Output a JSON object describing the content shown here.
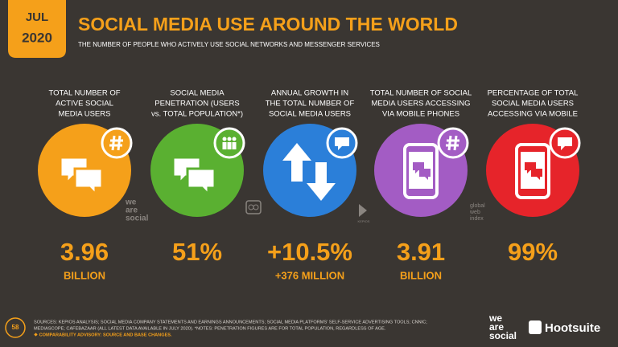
{
  "badge": {
    "month": "JUL",
    "year": "2020"
  },
  "header": {
    "title": "SOCIAL MEDIA USE AROUND THE WORLD",
    "subtitle": "THE NUMBER OF PEOPLE WHO ACTIVELY USE SOCIAL NETWORKS AND MESSENGER SERVICES"
  },
  "stats": [
    {
      "label": [
        "TOTAL NUMBER OF",
        "ACTIVE SOCIAL",
        "MEDIA USERS"
      ],
      "value": "3.96",
      "sub": "BILLION"
    },
    {
      "label": [
        "SOCIAL MEDIA",
        "PENETRATION (USERS",
        "vs. TOTAL POPULATION*)"
      ],
      "value": "51%"
    },
    {
      "label": [
        "ANNUAL GROWTH IN",
        "THE TOTAL NUMBER OF",
        "SOCIAL MEDIA USERS"
      ],
      "value": "+10.5%",
      "sub": "+376 MILLION"
    },
    {
      "label": [
        "TOTAL NUMBER OF SOCIAL",
        "MEDIA USERS ACCESSING",
        "VIA MOBILE PHONES"
      ],
      "value": "3.91",
      "sub": "BILLION"
    },
    {
      "label": [
        "PERCENTAGE OF TOTAL",
        "SOCIAL MEDIA USERS",
        "ACCESSING VIA MOBILE"
      ],
      "value": "99%"
    }
  ],
  "logos": {
    "wearesocial": [
      "we",
      "are",
      "social"
    ],
    "kepios": "KEPIOS",
    "gwi": [
      "global",
      "web",
      "index"
    ]
  },
  "footer": {
    "page": "58",
    "sources": [
      "SOURCES: KEPIOS ANALYSIS; SOCIAL MEDIA COMPANY STATEMENTS AND EARNINGS ANNOUNCEMENTS; SOCIAL MEDIA PLATFORMS' SELF-SERVICE ADVERTISING TOOLS; CNNIC;",
      "MEDIASCOPE; CAFEBAZAAR (ALL LATEST DATA AVAILABLE IN JULY 2020). *NOTES: PENETRATION FIGURES ARE FOR TOTAL POPULATION, REGARDLESS OF AGE."
    ],
    "advisory": "❖ COMPARABILITY ADVISORY: SOURCE AND BASE CHANGES.",
    "brand1": [
      "we",
      "are",
      "social"
    ],
    "brand2": "Hootsuite"
  }
}
